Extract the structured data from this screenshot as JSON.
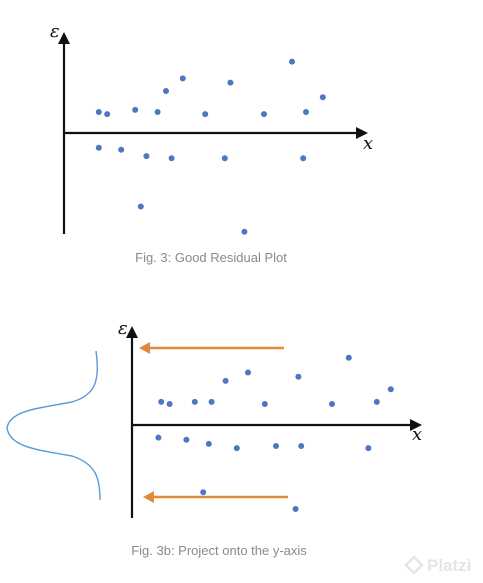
{
  "colors": {
    "points": "#4a78c2",
    "arrows": "#e08a3a",
    "bell_curve": "#5b9bd5",
    "axes": "#111111",
    "caption": "#8a8a8a"
  },
  "watermark": {
    "text": "Platzi",
    "icon": "platzi-logo-icon"
  },
  "chart_data": [
    {
      "type": "scatter",
      "title": "Fig. 3: Good Residual Plot",
      "xlabel": "x",
      "ylabel": "ε",
      "xlim": [
        0,
        10
      ],
      "ylim": [
        -3,
        2.5
      ],
      "grid": false,
      "series": [
        {
          "points": [
            [
              0.6,
              0.5
            ],
            [
              0.9,
              0.45
            ],
            [
              1.9,
              0.55
            ],
            [
              2.7,
              0.5
            ],
            [
              3.0,
              1.0
            ],
            [
              3.6,
              1.3
            ],
            [
              4.4,
              0.45
            ],
            [
              5.3,
              1.2
            ],
            [
              6.5,
              0.45
            ],
            [
              7.5,
              1.7
            ],
            [
              8.0,
              0.5
            ],
            [
              8.6,
              0.85
            ],
            [
              0.6,
              -0.35
            ],
            [
              1.4,
              -0.4
            ],
            [
              2.3,
              -0.55
            ],
            [
              3.2,
              -0.6
            ],
            [
              5.1,
              -0.6
            ],
            [
              7.9,
              -0.6
            ],
            [
              2.1,
              -1.75
            ],
            [
              5.8,
              -2.35
            ]
          ]
        }
      ]
    },
    {
      "type": "scatter",
      "title": "Fig. 3b: Project onto the y-axis",
      "xlabel": "x",
      "ylabel": "ε",
      "xlim": [
        0,
        10
      ],
      "ylim": [
        -3,
        2.5
      ],
      "grid": false,
      "annotations": [
        "arrow projecting points onto the y-axis (top)",
        "arrow projecting points onto the y-axis (bottom)",
        "bell-shaped distribution curve left of the y-axis"
      ],
      "series": [
        {
          "points": [
            [
              0.4,
              0.55
            ],
            [
              0.7,
              0.5
            ],
            [
              1.6,
              0.55
            ],
            [
              2.2,
              0.55
            ],
            [
              2.7,
              1.05
            ],
            [
              3.5,
              1.25
            ],
            [
              4.1,
              0.5
            ],
            [
              4.5,
              -0.5
            ],
            [
              5.3,
              1.15
            ],
            [
              6.5,
              0.5
            ],
            [
              7.1,
              1.6
            ],
            [
              8.1,
              0.55
            ],
            [
              8.6,
              0.85
            ],
            [
              0.3,
              -0.3
            ],
            [
              1.3,
              -0.35
            ],
            [
              2.1,
              -0.45
            ],
            [
              3.1,
              -0.55
            ],
            [
              5.4,
              -0.5
            ],
            [
              7.8,
              -0.55
            ],
            [
              1.9,
              -1.6
            ],
            [
              5.2,
              -2.0
            ]
          ]
        }
      ]
    }
  ]
}
